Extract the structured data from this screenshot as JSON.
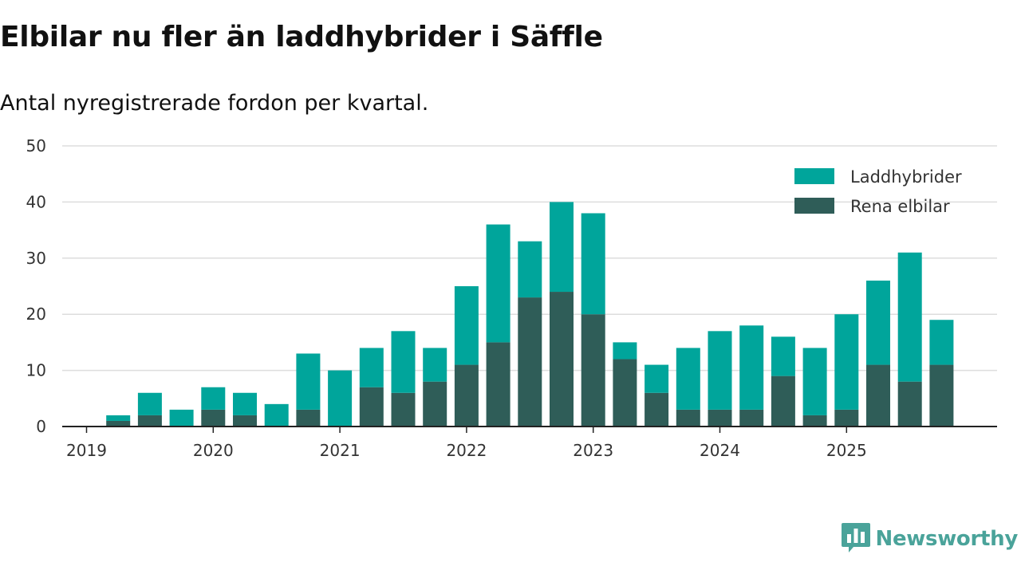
{
  "chart_data": {
    "type": "bar",
    "stacked": true,
    "title": "Elbilar nu fler än laddhybrider i Säffle",
    "subtitle": "Antal nyregistrerade fordon per kvartal.",
    "xlabel": "",
    "ylabel": "",
    "ylim": [
      0,
      50
    ],
    "yticks": [
      0,
      10,
      20,
      30,
      40,
      50
    ],
    "grid": true,
    "legend_position": "top-right",
    "year_ticks": [
      "2019",
      "2020",
      "2021",
      "2022",
      "2023",
      "2024",
      "2025"
    ],
    "categories": [
      "2019 Q1",
      "2019 Q2",
      "2019 Q3",
      "2019 Q4",
      "2020 Q1",
      "2020 Q2",
      "2020 Q3",
      "2020 Q4",
      "2021 Q1",
      "2021 Q2",
      "2021 Q3",
      "2021 Q4",
      "2022 Q1",
      "2022 Q2",
      "2022 Q3",
      "2022 Q4",
      "2023 Q1",
      "2023 Q2",
      "2023 Q3",
      "2023 Q4",
      "2024 Q1",
      "2024 Q2",
      "2024 Q3",
      "2024 Q4",
      "2025 Q1",
      "2025 Q2",
      "2025 Q3",
      "2025 Q4"
    ],
    "series": [
      {
        "name": "Rena elbilar",
        "color": "#2f5d58",
        "values": [
          0,
          1,
          2,
          0,
          3,
          2,
          0,
          3,
          0,
          7,
          6,
          8,
          11,
          15,
          23,
          24,
          20,
          12,
          6,
          3,
          3,
          3,
          9,
          2,
          3,
          11,
          8,
          11
        ]
      },
      {
        "name": "Laddhybrider",
        "color": "#00a59b",
        "values": [
          0,
          1,
          4,
          3,
          4,
          4,
          4,
          10,
          10,
          7,
          11,
          6,
          14,
          21,
          10,
          16,
          18,
          3,
          5,
          11,
          14,
          15,
          7,
          12,
          17,
          15,
          23,
          8
        ]
      }
    ]
  },
  "brand": {
    "name": "Newsworthy",
    "icon": "newsworthy-logo-icon",
    "color": "#4aa39a"
  }
}
